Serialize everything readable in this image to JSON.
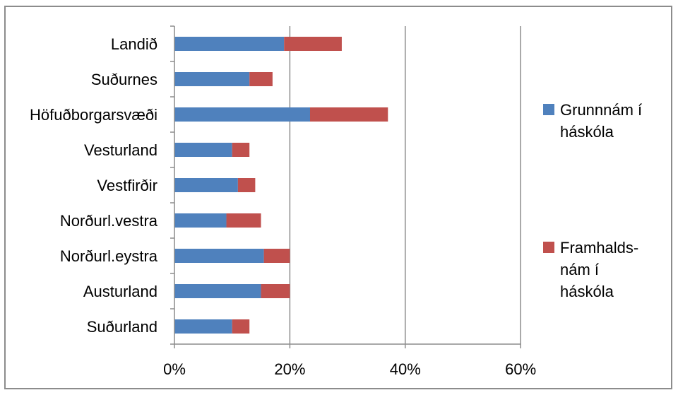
{
  "chart_data": {
    "type": "bar",
    "orientation": "horizontal",
    "stacked": true,
    "categories": [
      "Landið",
      "Suðurnes",
      "Höfuðborgarsvæði",
      "Vesturland",
      "Vestfirðir",
      "Norðurl.vestra",
      "Norðurl.eystra",
      "Austurland",
      "Suðurland"
    ],
    "series": [
      {
        "name": "Grunnnám í háskóla",
        "legend_lines": [
          "Grunnnám í",
          "háskóla"
        ],
        "color": "#4f81bd",
        "values": [
          19,
          13,
          23.5,
          10,
          11,
          9,
          15.5,
          15,
          10
        ]
      },
      {
        "name": "Framhalds-nám í háskóla",
        "legend_lines": [
          "Framhalds-",
          "nám í",
          "háskóla"
        ],
        "color": "#c0504d",
        "values": [
          10,
          4,
          13.5,
          3,
          3,
          6,
          4.5,
          5,
          3
        ]
      }
    ],
    "xticks": [
      "0%",
      "20%",
      "40%",
      "60%"
    ],
    "xlim": [
      0,
      60
    ],
    "grid": "vertical",
    "legend": "right",
    "title": "",
    "xlabel": "",
    "ylabel": ""
  }
}
